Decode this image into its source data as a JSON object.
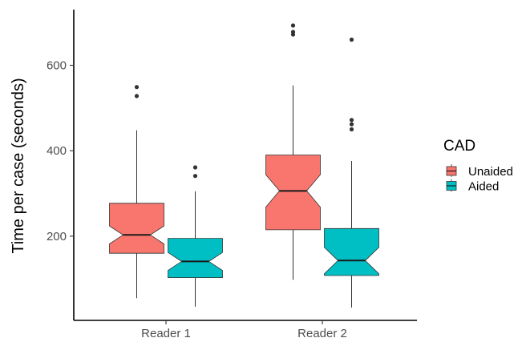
{
  "chart_data": {
    "type": "boxplot",
    "ylabel": "Time per case (seconds)",
    "xlabel": "",
    "ylim": [
      0,
      720
    ],
    "yticks": [
      200,
      400,
      600
    ],
    "categories": [
      "Reader 1",
      "Reader 2"
    ],
    "notched": true,
    "grid": false,
    "legend": {
      "title": "CAD",
      "position": "right"
    },
    "series": [
      {
        "name": "Unaided",
        "color": "#F8766D",
        "boxes": [
          {
            "category": "Reader 1",
            "min": 55,
            "q1": 160,
            "median": 203,
            "q3": 277,
            "max": 448,
            "notch": [
              182,
              224
            ],
            "outliers": [
              528,
              549
            ]
          },
          {
            "category": "Reader 2",
            "min": 98,
            "q1": 215,
            "median": 306,
            "q3": 390,
            "max": 553,
            "notch": [
              268,
              344
            ],
            "outliers": [
              672,
              678,
              693
            ]
          }
        ]
      },
      {
        "name": "Aided",
        "color": "#00BFC4",
        "boxes": [
          {
            "category": "Reader 1",
            "min": 35,
            "q1": 103,
            "median": 141,
            "q3": 195,
            "max": 305,
            "notch": [
              120,
              162
            ],
            "outliers": [
              341,
              361
            ]
          },
          {
            "category": "Reader 2",
            "min": 33,
            "q1": 108,
            "median": 143,
            "q3": 218,
            "max": 376,
            "notch": [
              112,
              174
            ],
            "outliers": [
              450,
              462,
              472,
              660
            ]
          }
        ]
      }
    ]
  }
}
